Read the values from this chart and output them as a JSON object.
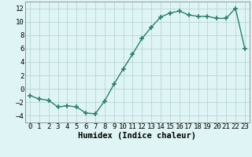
{
  "x": [
    0,
    1,
    2,
    3,
    4,
    5,
    6,
    7,
    8,
    9,
    10,
    11,
    12,
    13,
    14,
    15,
    16,
    17,
    18,
    19,
    20,
    21,
    22,
    23
  ],
  "y": [
    -1.0,
    -1.5,
    -1.7,
    -2.7,
    -2.5,
    -2.7,
    -3.6,
    -3.7,
    -1.8,
    0.7,
    3.0,
    5.2,
    7.5,
    9.2,
    10.7,
    11.3,
    11.6,
    11.0,
    10.8,
    10.8,
    10.5,
    10.5,
    12.0,
    6.0
  ],
  "line_color": "#2e7d6e",
  "marker": "+",
  "marker_size": 4,
  "marker_lw": 1.2,
  "bg_color": "#dff5f5",
  "grid_color": "#b8d4d4",
  "xlabel": "Humidex (Indice chaleur)",
  "xlim": [
    -0.5,
    23.5
  ],
  "ylim": [
    -5,
    13
  ],
  "yticks": [
    -4,
    -2,
    0,
    2,
    4,
    6,
    8,
    10,
    12
  ],
  "xticks": [
    0,
    1,
    2,
    3,
    4,
    5,
    6,
    7,
    8,
    9,
    10,
    11,
    12,
    13,
    14,
    15,
    16,
    17,
    18,
    19,
    20,
    21,
    22,
    23
  ],
  "xlabel_fontsize": 7.5,
  "tick_fontsize": 6.5,
  "line_width": 1.0
}
